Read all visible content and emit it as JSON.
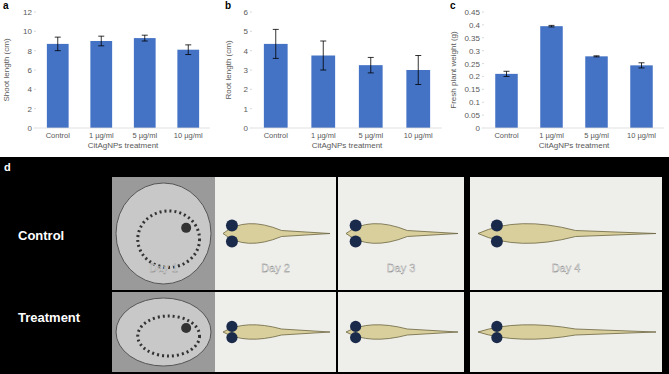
{
  "chart_data": [
    {
      "type": "bar",
      "annotations": [
        "a"
      ],
      "categories": [
        "Control",
        "1 µg/ml",
        "5 µg/ml",
        "10 µg/ml"
      ],
      "values": [
        8.7,
        9.0,
        9.3,
        8.1
      ],
      "errors": [
        0.7,
        0.5,
        0.3,
        0.5
      ],
      "color": "#4472c4",
      "xlabel": "CitAgNPs treatment",
      "ylabel": "Shoot length (cm)",
      "ylim": [
        0,
        12
      ],
      "yticks": [
        0,
        2,
        4,
        6,
        8,
        10,
        12
      ],
      "grid": false
    },
    {
      "type": "bar",
      "annotations": [
        "b"
      ],
      "categories": [
        "Control",
        "1 µg/ml",
        "5 µg/ml",
        "10 µg/ml"
      ],
      "values": [
        4.35,
        3.75,
        3.25,
        3.0
      ],
      "errors": [
        0.75,
        0.75,
        0.4,
        0.75
      ],
      "color": "#4472c4",
      "xlabel": "CitAgNPs treatment",
      "ylabel": "Root length (cm)",
      "ylim": [
        0,
        6
      ],
      "yticks": [
        0,
        1,
        2,
        3,
        4,
        5,
        6
      ],
      "grid": false
    },
    {
      "type": "bar",
      "annotations": [
        "c"
      ],
      "categories": [
        "Control",
        "1 µg/ml",
        "5 µg/ml",
        "10 µg/ml"
      ],
      "values": [
        0.21,
        0.395,
        0.278,
        0.243
      ],
      "errors": [
        0.01,
        0.003,
        0.002,
        0.01
      ],
      "color": "#4472c4",
      "xlabel": "CitAgNPs treatment",
      "ylabel": "Fresh plant weight (g)",
      "ylim": [
        0,
        0.45
      ],
      "yticks": [
        0,
        0.05,
        0.1,
        0.15,
        0.2,
        0.25,
        0.3,
        0.35,
        0.4,
        0.45
      ],
      "grid": false
    }
  ],
  "image_panel": {
    "label": "d",
    "rows": [
      "Control",
      "Treatment"
    ],
    "columns": [
      "Day 1",
      "Day 2",
      "Day 3",
      "Day 4"
    ]
  }
}
